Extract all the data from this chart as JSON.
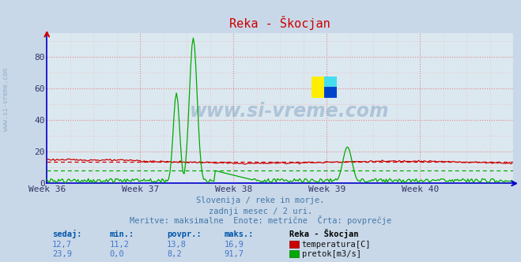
{
  "title": "Reka - Škocjan",
  "background_color": "#c8d8e8",
  "plot_bg_color": "#dce8f0",
  "grid_major_color": "#e08080",
  "grid_minor_color": "#e8b0b0",
  "xlim": [
    0,
    360
  ],
  "ylim": [
    0,
    95
  ],
  "yticks": [
    0,
    20,
    40,
    60,
    80
  ],
  "xtick_labels": [
    "Week 36",
    "Week 37",
    "Week 38",
    "Week 39",
    "Week 40"
  ],
  "xtick_positions": [
    0,
    72,
    144,
    216,
    288
  ],
  "temp_color": "#cc0000",
  "flow_color": "#00aa00",
  "avg_temp": 13.8,
  "avg_flow": 8.2,
  "temp_max": 16.9,
  "flow_max": 91.7,
  "left_spine_color": "#0000cc",
  "bottom_spine_color": "#0000cc",
  "subtitle1": "Slovenija / reke in morje.",
  "subtitle2": "zadnji mesec / 2 uri.",
  "subtitle3": "Meritve: maksimalne  Enote: metrične  Črta: povprečje",
  "table_header": [
    "sedaj:",
    "min.:",
    "povpr.:",
    "maks.:",
    "Reka - Škocjan"
  ],
  "row1": [
    "12,7",
    "11,2",
    "13,8",
    "16,9",
    "temperatura[C]"
  ],
  "row2": [
    "23,9",
    "0,0",
    "8,2",
    "91,7",
    "pretok[m3/s]"
  ],
  "watermark": "www.si-vreme.com",
  "sidebar_text": "www.si-vreme.com",
  "n_points": 360
}
